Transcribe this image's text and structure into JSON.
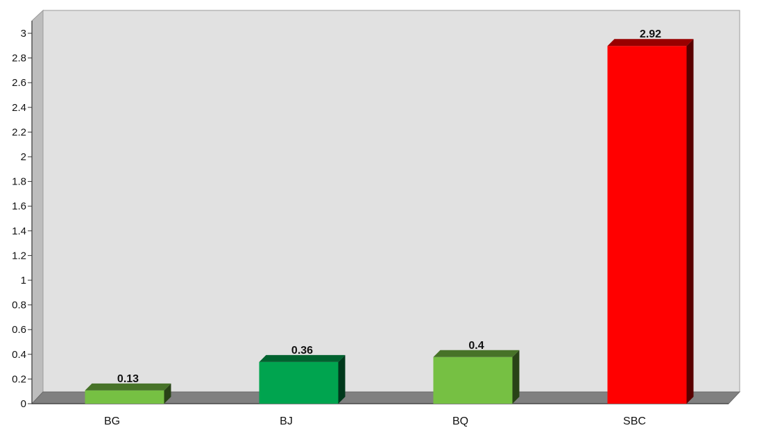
{
  "chart_data": {
    "type": "bar",
    "title": "",
    "xlabel": "",
    "ylabel": "",
    "categories": [
      "BG",
      "BJ",
      "BQ",
      "SBC"
    ],
    "values": [
      0.13,
      0.36,
      0.4,
      2.92
    ],
    "value_labels": [
      "0.13",
      "0.36",
      "0.4",
      "2.92"
    ],
    "bar_colors": [
      "#76c043",
      "#00a44f",
      "#76c043",
      "#ff0000"
    ],
    "ylim": [
      0,
      3
    ],
    "yticks": [
      0,
      0.2,
      0.4,
      0.6,
      0.8,
      1,
      1.2,
      1.4,
      1.6,
      1.8,
      2,
      2.2,
      2.4,
      2.6,
      2.8,
      3
    ],
    "ytick_labels": [
      "0",
      "0.2",
      "0.4",
      "0.6",
      "0.8",
      "1",
      "1.2",
      "1.4",
      "1.6",
      "1.8",
      "2",
      "2.2",
      "2.4",
      "2.6",
      "2.8",
      "3"
    ],
    "grid": false,
    "legend": "none",
    "style": "3d",
    "plot_background": "#e1e1e1",
    "floor_color": "#808080"
  }
}
